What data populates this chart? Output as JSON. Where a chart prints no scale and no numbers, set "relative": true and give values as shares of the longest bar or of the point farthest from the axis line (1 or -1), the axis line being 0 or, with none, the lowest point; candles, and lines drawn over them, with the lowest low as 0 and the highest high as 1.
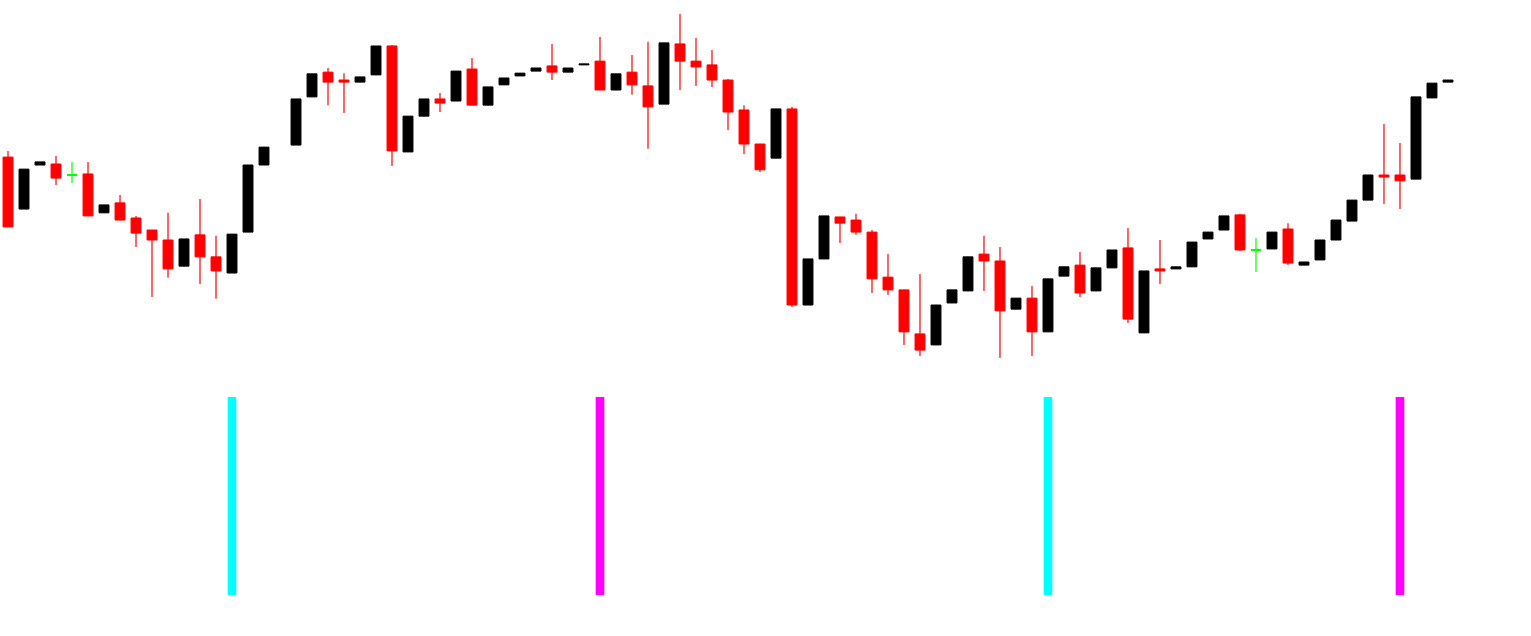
{
  "chart_data": [
    {
      "type": "candlestick",
      "relative": true,
      "categories": [
        null,
        null,
        null,
        null,
        null,
        null,
        null,
        null,
        null,
        null,
        null,
        null,
        null,
        null,
        null,
        null,
        null,
        null,
        null,
        null,
        null,
        null,
        null,
        null,
        null,
        null,
        null,
        null,
        null,
        null,
        null,
        null,
        null,
        null,
        null,
        null,
        null,
        null,
        null,
        null,
        null,
        null,
        null,
        null,
        null,
        null,
        null,
        null,
        null,
        null,
        null,
        null,
        null,
        null,
        null,
        null,
        null,
        null,
        null,
        null,
        null,
        null,
        null,
        null,
        null,
        null,
        null,
        null,
        null,
        null,
        null,
        null,
        null,
        null,
        null,
        null,
        null,
        null,
        null,
        null,
        null,
        null,
        null,
        null,
        null,
        null,
        null,
        null,
        null,
        null,
        null
      ],
      "ohlc": [
        [
          0.584,
          0.602,
          0.381,
          0.381
        ],
        [
          0.433,
          0.549,
          0.433,
          0.549
        ],
        [
          0.561,
          0.57,
          0.561,
          0.57
        ],
        [
          0.564,
          0.587,
          0.503,
          0.523
        ],
        [
          0.532,
          0.57,
          0.509,
          0.532
        ],
        [
          0.535,
          0.57,
          0.413,
          0.413
        ],
        [
          0.422,
          0.445,
          0.422,
          0.445
        ],
        [
          0.451,
          0.474,
          0.401,
          0.401
        ],
        [
          0.407,
          0.413,
          0.323,
          0.363
        ],
        [
          0.372,
          0.372,
          0.177,
          0.343
        ],
        [
          0.343,
          0.422,
          0.233,
          0.259
        ],
        [
          0.267,
          0.346,
          0.267,
          0.346
        ],
        [
          0.358,
          0.462,
          0.215,
          0.294
        ],
        [
          0.294,
          0.355,
          0.172,
          0.253
        ],
        [
          0.247,
          0.36,
          0.247,
          0.36
        ],
        [
          0.366,
          0.561,
          0.366,
          0.561
        ],
        [
          0.561,
          0.613,
          0.561,
          0.613
        ],
        null,
        [
          0.619,
          0.753,
          0.619,
          0.753
        ],
        [
          0.759,
          0.826,
          0.759,
          0.826
        ],
        [
          0.831,
          0.843,
          0.735,
          0.802
        ],
        [
          0.808,
          0.828,
          0.712,
          0.802
        ],
        [
          0.802,
          0.817,
          0.802,
          0.817
        ],
        [
          0.823,
          0.907,
          0.823,
          0.907
        ],
        [
          0.907,
          0.91,
          0.558,
          0.602
        ],
        [
          0.599,
          0.703,
          0.599,
          0.703
        ],
        [
          0.703,
          0.753,
          0.703,
          0.753
        ],
        [
          0.753,
          0.77,
          0.715,
          0.741
        ],
        [
          0.747,
          0.834,
          0.747,
          0.834
        ],
        [
          0.84,
          0.872,
          0.735,
          0.735
        ],
        [
          0.735,
          0.788,
          0.735,
          0.788
        ],
        [
          0.794,
          0.814,
          0.794,
          0.814
        ],
        [
          0.82,
          0.828,
          0.82,
          0.828
        ],
        [
          0.834,
          0.843,
          0.834,
          0.843
        ],
        [
          0.849,
          0.913,
          0.808,
          0.831
        ],
        [
          0.831,
          0.843,
          0.831,
          0.843
        ],
        [
          0.852,
          0.855,
          0.852,
          0.855
        ],
        [
          0.863,
          0.933,
          0.779,
          0.779
        ],
        [
          0.779,
          0.826,
          0.779,
          0.826
        ],
        [
          0.831,
          0.881,
          0.765,
          0.794
        ],
        [
          0.791,
          0.919,
          0.608,
          0.73
        ],
        [
          0.738,
          0.916,
          0.738,
          0.916
        ],
        [
          0.913,
          1,
          0.779,
          0.863
        ],
        [
          0.863,
          0.93,
          0.791,
          0.846
        ],
        [
          0.852,
          0.895,
          0.788,
          0.808
        ],
        [
          0.808,
          0.811,
          0.663,
          0.715
        ],
        [
          0.721,
          0.735,
          0.593,
          0.622
        ],
        [
          0.622,
          0.622,
          0.541,
          0.547
        ],
        [
          0.581,
          0.724,
          0.581,
          0.724
        ],
        [
          0.724,
          0.73,
          0.148,
          0.154
        ],
        [
          0.154,
          0.288,
          0.154,
          0.288
        ],
        [
          0.288,
          0.413,
          0.288,
          0.413
        ],
        [
          0.41,
          0.41,
          0.334,
          0.392
        ],
        [
          0.401,
          0.419,
          0.358,
          0.366
        ],
        [
          0.366,
          0.372,
          0.189,
          0.23
        ],
        [
          0.235,
          0.302,
          0.183,
          0.198
        ],
        [
          0.198,
          0.198,
          0.038,
          0.076
        ],
        [
          0.07,
          0.244,
          0.006,
          0.023
        ],
        [
          0.038,
          0.154,
          0.038,
          0.154
        ],
        [
          0.16,
          0.198,
          0.16,
          0.198
        ],
        [
          0.195,
          0.294,
          0.195,
          0.294
        ],
        [
          0.302,
          0.355,
          0.195,
          0.282
        ],
        [
          0.282,
          0.323,
          0,
          0.137
        ],
        [
          0.142,
          0.174,
          0.142,
          0.174
        ],
        [
          0.174,
          0.209,
          0.006,
          0.076
        ],
        [
          0.076,
          0.23,
          0.076,
          0.23
        ],
        [
          0.238,
          0.265,
          0.238,
          0.265
        ],
        [
          0.27,
          0.308,
          0.177,
          0.189
        ],
        [
          0.195,
          0.262,
          0.195,
          0.262
        ],
        [
          0.262,
          0.314,
          0.262,
          0.314
        ],
        [
          0.32,
          0.378,
          0.102,
          0.113
        ],
        [
          0.073,
          0.253,
          0.073,
          0.253
        ],
        [
          0.259,
          0.343,
          0.215,
          0.253
        ],
        [
          0.259,
          0.265,
          0.259,
          0.265
        ],
        [
          0.265,
          0.337,
          0.265,
          0.337
        ],
        [
          0.346,
          0.366,
          0.346,
          0.366
        ],
        [
          0.372,
          0.413,
          0.372,
          0.413
        ],
        [
          0.416,
          0.419,
          0.311,
          0.314
        ],
        [
          0.314,
          0.349,
          0.25,
          0.314
        ],
        [
          0.317,
          0.366,
          0.317,
          0.366
        ],
        [
          0.375,
          0.392,
          0.27,
          0.276
        ],
        [
          0.27,
          0.279,
          0.27,
          0.279
        ],
        [
          0.285,
          0.343,
          0.285,
          0.343
        ],
        [
          0.343,
          0.401,
          0.343,
          0.401
        ],
        [
          0.398,
          0.459,
          0.398,
          0.459
        ],
        [
          0.459,
          0.532,
          0.459,
          0.532
        ],
        [
          0.532,
          0.68,
          0.448,
          0.526
        ],
        [
          0.532,
          0.625,
          0.433,
          0.515
        ],
        [
          0.52,
          0.759,
          0.52,
          0.759
        ],
        [
          0.756,
          0.799,
          0.756,
          0.799
        ],
        [
          0.802,
          0.808,
          0.802,
          0.808
        ]
      ],
      "colors": [
        "#ff0000",
        "#000000",
        "#000000",
        "#ff0000",
        "#00ff00",
        "#ff0000",
        "#000000",
        "#ff0000",
        "#ff0000",
        "#ff0000",
        "#ff0000",
        "#000000",
        "#ff0000",
        "#ff0000",
        "#000000",
        "#000000",
        "#000000",
        null,
        "#000000",
        "#000000",
        "#ff0000",
        "#ff0000",
        "#000000",
        "#000000",
        "#ff0000",
        "#000000",
        "#000000",
        "#ff0000",
        "#000000",
        "#ff0000",
        "#000000",
        "#000000",
        "#000000",
        "#000000",
        "#ff0000",
        "#000000",
        "#000000",
        "#ff0000",
        "#000000",
        "#ff0000",
        "#ff0000",
        "#000000",
        "#ff0000",
        "#ff0000",
        "#ff0000",
        "#ff0000",
        "#ff0000",
        "#ff0000",
        "#000000",
        "#ff0000",
        "#000000",
        "#000000",
        "#ff0000",
        "#ff0000",
        "#ff0000",
        "#ff0000",
        "#ff0000",
        "#ff0000",
        "#000000",
        "#000000",
        "#000000",
        "#ff0000",
        "#ff0000",
        "#000000",
        "#ff0000",
        "#000000",
        "#000000",
        "#ff0000",
        "#000000",
        "#000000",
        "#ff0000",
        "#000000",
        "#ff0000",
        "#000000",
        "#000000",
        "#000000",
        "#000000",
        "#ff0000",
        "#00ff00",
        "#000000",
        "#ff0000",
        "#000000",
        "#000000",
        "#000000",
        "#000000",
        "#000000",
        "#ff0000",
        "#ff0000",
        "#000000",
        "#000000",
        "#000000"
      ]
    },
    {
      "type": "bar",
      "relative": true,
      "categories": [
        null,
        null,
        null,
        null,
        null,
        null,
        null,
        null,
        null,
        null,
        null,
        null,
        null,
        null,
        null,
        null,
        null,
        null,
        null,
        null,
        null,
        null,
        null,
        null,
        null,
        null,
        null,
        null,
        null,
        null,
        null,
        null,
        null,
        null,
        null,
        null,
        null,
        null,
        null,
        null,
        null,
        null,
        null,
        null,
        null,
        null,
        null,
        null,
        null,
        null,
        null,
        null,
        null,
        null,
        null,
        null,
        null,
        null,
        null,
        null,
        null,
        null,
        null,
        null,
        null,
        null,
        null,
        null,
        null,
        null,
        null,
        null,
        null,
        null,
        null,
        null,
        null,
        null,
        null,
        null,
        null,
        null,
        null,
        null,
        null,
        null,
        null,
        null,
        null,
        null,
        null
      ],
      "values": [
        null,
        null,
        null,
        null,
        null,
        null,
        null,
        null,
        null,
        null,
        null,
        null,
        null,
        null,
        1,
        null,
        null,
        null,
        null,
        null,
        null,
        null,
        null,
        null,
        null,
        null,
        null,
        null,
        null,
        null,
        null,
        null,
        null,
        null,
        null,
        null,
        null,
        1,
        null,
        null,
        null,
        null,
        null,
        null,
        null,
        null,
        null,
        null,
        null,
        null,
        null,
        null,
        null,
        null,
        null,
        null,
        null,
        null,
        null,
        null,
        null,
        null,
        null,
        null,
        null,
        1,
        null,
        null,
        null,
        null,
        null,
        null,
        null,
        null,
        null,
        null,
        null,
        null,
        null,
        null,
        null,
        null,
        null,
        null,
        null,
        null,
        null,
        1,
        null,
        null,
        null
      ],
      "colors": [
        null,
        null,
        null,
        null,
        null,
        null,
        null,
        null,
        null,
        null,
        null,
        null,
        null,
        null,
        "#00ffff",
        null,
        null,
        null,
        null,
        null,
        null,
        null,
        null,
        null,
        null,
        null,
        null,
        null,
        null,
        null,
        null,
        null,
        null,
        null,
        null,
        null,
        null,
        "#ff00ff",
        null,
        null,
        null,
        null,
        null,
        null,
        null,
        null,
        null,
        null,
        null,
        null,
        null,
        null,
        null,
        null,
        null,
        null,
        null,
        null,
        null,
        null,
        null,
        null,
        null,
        null,
        null,
        "#00ffff",
        null,
        null,
        null,
        null,
        null,
        null,
        null,
        null,
        null,
        null,
        null,
        null,
        null,
        null,
        null,
        null,
        null,
        null,
        null,
        null,
        null,
        "#ff00ff",
        null,
        null,
        null
      ]
    }
  ]
}
